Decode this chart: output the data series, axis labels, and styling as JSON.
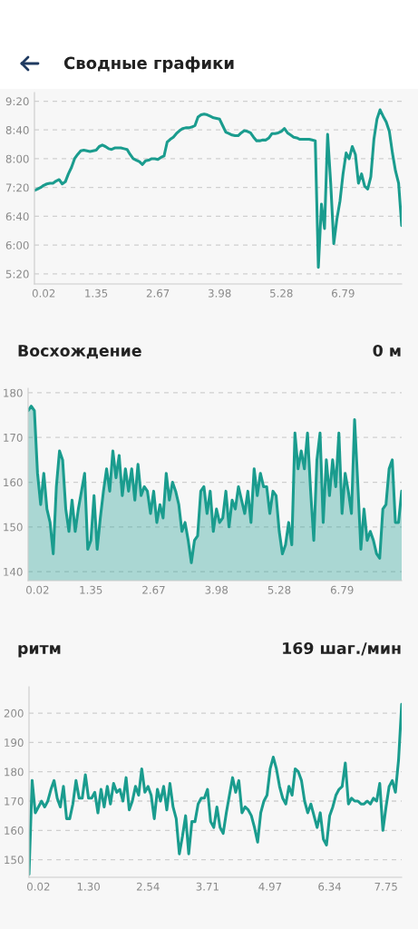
{
  "chart_data": [
    {
      "type": "line",
      "title": "Сводные графики",
      "color": "#1a9c8e",
      "grid": "y",
      "categories": [
        null,
        null,
        null,
        "0.02",
        null,
        null,
        null,
        null,
        null,
        null,
        null,
        null,
        null,
        null,
        null,
        null,
        null,
        null,
        null,
        null,
        "1.35",
        null,
        null,
        null,
        null,
        null,
        null,
        null,
        null,
        null,
        null,
        null,
        null,
        null,
        null,
        null,
        null,
        null,
        null,
        null,
        "2.67",
        null,
        null,
        null,
        null,
        null,
        null,
        null,
        null,
        null,
        null,
        null,
        null,
        null,
        null,
        null,
        null,
        null,
        null,
        null,
        "3.98",
        null,
        null,
        null,
        null,
        null,
        null,
        null,
        null,
        null,
        null,
        null,
        null,
        null,
        null,
        null,
        null,
        null,
        null,
        null,
        "5.28",
        null,
        null,
        null,
        null,
        null,
        null,
        null,
        null,
        null,
        null,
        null,
        null,
        null,
        null,
        null,
        null,
        null,
        null,
        null,
        "6.79",
        null,
        null,
        null,
        null,
        null,
        null,
        null,
        null,
        null,
        null,
        null,
        null,
        null,
        null,
        null,
        null,
        null,
        null,
        null
      ],
      "values": [
        436,
        438,
        440,
        443,
        445,
        446,
        446,
        449,
        451,
        445,
        448,
        459,
        468,
        480,
        486,
        491,
        492,
        491,
        490,
        491,
        492,
        497,
        499,
        497,
        494,
        493,
        495,
        495,
        495,
        494,
        493,
        486,
        480,
        478,
        476,
        472,
        477,
        478,
        480,
        480,
        479,
        482,
        484,
        503,
        507,
        510,
        515,
        519,
        522,
        523,
        523,
        524,
        526,
        538,
        541,
        542,
        541,
        539,
        537,
        536,
        535,
        526,
        517,
        515,
        513,
        512,
        512,
        516,
        519,
        518,
        516,
        510,
        505,
        505,
        506,
        506,
        509,
        515,
        515,
        516,
        518,
        522,
        516,
        513,
        510,
        509,
        507,
        507,
        507,
        507,
        506,
        505,
        329,
        417,
        383,
        514,
        446,
        362,
        396,
        421,
        459,
        488,
        480,
        497,
        486,
        446,
        459,
        442,
        438,
        455,
        507,
        535,
        548,
        539,
        531,
        518,
        488,
        463,
        446,
        387
      ],
      "ylim": [
        306,
        572
      ],
      "yticks": [
        {
          "value": 320,
          "label": "5:20"
        },
        {
          "value": 360,
          "label": "6:00"
        },
        {
          "value": 400,
          "label": "6:40"
        },
        {
          "value": 440,
          "label": "7:20"
        },
        {
          "value": 480,
          "label": "8:00"
        },
        {
          "value": 520,
          "label": "8:40"
        },
        {
          "value": 560,
          "label": "9:20"
        }
      ]
    },
    {
      "type": "area",
      "title": "Восхождение",
      "subtitle": "0 м",
      "color": "#1a9c8e",
      "grid": "y",
      "categories": [
        null,
        null,
        null,
        "0.02",
        null,
        null,
        null,
        null,
        null,
        null,
        null,
        null,
        null,
        null,
        null,
        null,
        null,
        null,
        null,
        null,
        "1.35",
        null,
        null,
        null,
        null,
        null,
        null,
        null,
        null,
        null,
        null,
        null,
        null,
        null,
        null,
        null,
        null,
        null,
        null,
        null,
        "2.67",
        null,
        null,
        null,
        null,
        null,
        null,
        null,
        null,
        null,
        null,
        null,
        null,
        null,
        null,
        null,
        null,
        null,
        null,
        null,
        "3.98",
        null,
        null,
        null,
        null,
        null,
        null,
        null,
        null,
        null,
        null,
        null,
        null,
        null,
        null,
        null,
        null,
        null,
        null,
        null,
        "5.28",
        null,
        null,
        null,
        null,
        null,
        null,
        null,
        null,
        null,
        null,
        null,
        null,
        null,
        null,
        null,
        null,
        null,
        null,
        null,
        "6.79",
        null,
        null,
        null,
        null,
        null,
        null,
        null,
        null,
        null,
        null,
        null,
        null,
        null,
        null,
        null,
        null,
        null,
        null,
        null
      ],
      "values": [
        176,
        177,
        176,
        162,
        155,
        162,
        154,
        151,
        144,
        159,
        167,
        165,
        154,
        149,
        156,
        149,
        154,
        158,
        162,
        145,
        147,
        157,
        145,
        152,
        158,
        163,
        158,
        167,
        161,
        166,
        157,
        163,
        158,
        163,
        156,
        164,
        157,
        159,
        158,
        153,
        158,
        151,
        155,
        152,
        162,
        156,
        160,
        158,
        155,
        149,
        151,
        147,
        142,
        147,
        148,
        158,
        159,
        153,
        158,
        149,
        154,
        151,
        152,
        158,
        150,
        156,
        154,
        159,
        156,
        153,
        158,
        151,
        163,
        157,
        162,
        159,
        159,
        153,
        158,
        157,
        149,
        144,
        146,
        151,
        146,
        171,
        163,
        167,
        163,
        171,
        158,
        147,
        165,
        171,
        151,
        165,
        157,
        165,
        159,
        171,
        153,
        162,
        158,
        153,
        174,
        160,
        145,
        154,
        147,
        149,
        147,
        144,
        143,
        154,
        155,
        163,
        165,
        151,
        151,
        158
      ],
      "ylim": [
        138,
        181
      ],
      "yticks": [
        140,
        150,
        160,
        170,
        180
      ]
    },
    {
      "type": "line",
      "title": "ритм",
      "subtitle": "169 шаг./мин",
      "color": "#1a9c8e",
      "grid": "y",
      "categories": [
        null,
        null,
        null,
        "0.02",
        null,
        null,
        null,
        null,
        null,
        null,
        null,
        null,
        null,
        null,
        null,
        null,
        null,
        null,
        null,
        "1.30",
        null,
        null,
        null,
        null,
        null,
        null,
        null,
        null,
        null,
        null,
        null,
        null,
        null,
        null,
        null,
        null,
        null,
        null,
        "2.54",
        null,
        null,
        null,
        null,
        null,
        null,
        null,
        null,
        null,
        null,
        null,
        null,
        null,
        null,
        null,
        null,
        null,
        null,
        "3.71",
        null,
        null,
        null,
        null,
        null,
        null,
        null,
        null,
        null,
        null,
        null,
        null,
        null,
        null,
        null,
        null,
        null,
        null,
        null,
        "4.97",
        null,
        null,
        null,
        null,
        null,
        null,
        null,
        null,
        null,
        null,
        null,
        null,
        null,
        null,
        null,
        null,
        null,
        null,
        "6.34",
        null,
        null,
        null,
        null,
        null,
        null,
        null,
        null,
        null,
        null,
        null,
        null,
        null,
        null,
        null,
        null,
        null,
        "7.75",
        null,
        null,
        null,
        null,
        null
      ],
      "values": [
        145,
        177,
        166,
        168,
        170,
        168,
        170,
        174,
        177,
        171,
        168,
        175,
        164,
        164,
        169,
        177,
        171,
        171,
        179,
        171,
        171,
        173,
        166,
        174,
        168,
        175,
        169,
        176,
        173,
        174,
        170,
        178,
        167,
        170,
        175,
        172,
        181,
        173,
        175,
        172,
        164,
        174,
        170,
        175,
        167,
        176,
        168,
        164,
        152,
        158,
        165,
        152,
        163,
        163,
        169,
        171,
        171,
        174,
        163,
        161,
        168,
        161,
        159,
        166,
        172,
        178,
        173,
        177,
        166,
        168,
        167,
        165,
        161,
        156,
        166,
        170,
        172,
        181,
        185,
        181,
        175,
        171,
        169,
        175,
        172,
        181,
        180,
        177,
        170,
        166,
        169,
        165,
        161,
        166,
        157,
        155,
        165,
        168,
        172,
        174,
        175,
        183,
        169,
        171,
        170,
        170,
        169,
        169,
        170,
        169,
        171,
        170,
        176,
        160,
        168,
        175,
        177,
        173,
        184,
        203
      ],
      "ylim": [
        144,
        209
      ],
      "yticks": [
        150,
        160,
        170,
        180,
        190,
        200
      ]
    }
  ]
}
